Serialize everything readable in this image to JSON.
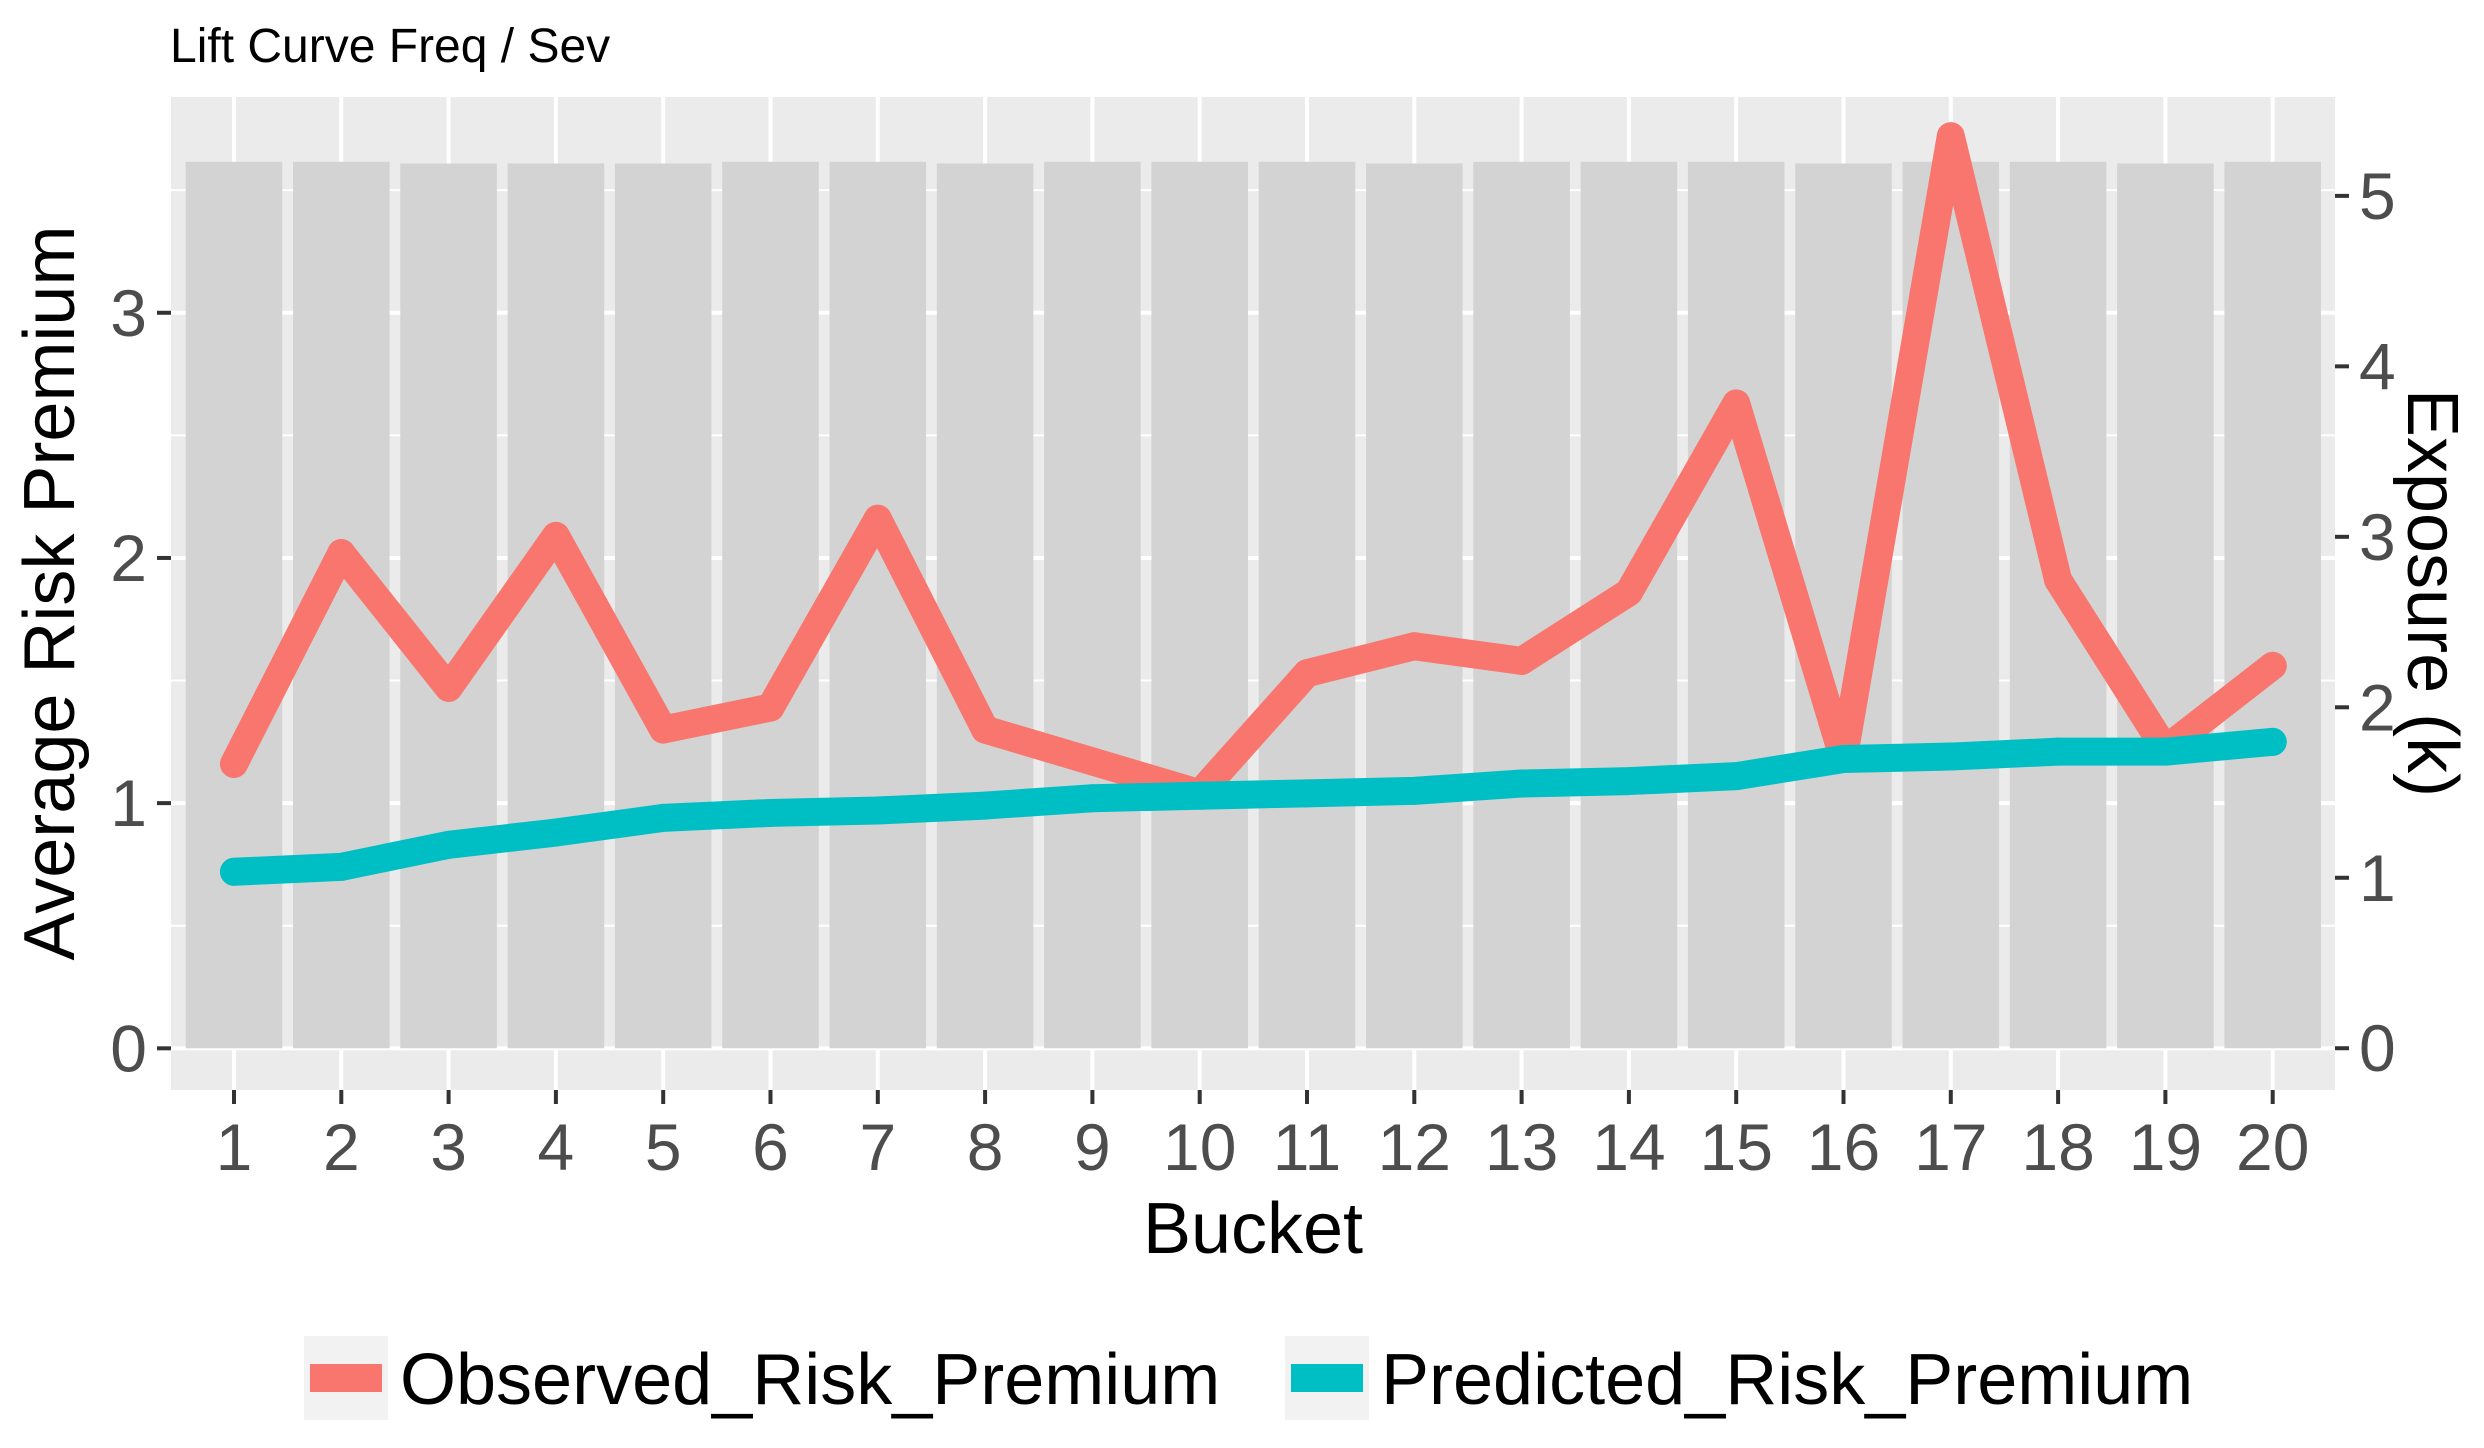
{
  "chart_data": {
    "type": "bar+line",
    "title": "Lift Curve Freq / Sev",
    "xlabel": "Bucket",
    "ylabel": "Average Risk Premium",
    "y2label": "Exposure (k)",
    "categories": [
      "1",
      "2",
      "3",
      "4",
      "5",
      "6",
      "7",
      "8",
      "9",
      "10",
      "11",
      "12",
      "13",
      "14",
      "15",
      "16",
      "17",
      "18",
      "19",
      "20"
    ],
    "ylim": [
      -0.17,
      3.88
    ],
    "yticks": [
      0,
      1,
      2,
      3
    ],
    "y2lim": [
      -0.245,
      5.58
    ],
    "y2ticks": [
      0,
      1,
      2,
      3,
      4,
      5
    ],
    "bars": {
      "name": "Exposure (k)",
      "values": [
        5.2,
        5.2,
        5.19,
        5.19,
        5.19,
        5.2,
        5.2,
        5.19,
        5.2,
        5.2,
        5.2,
        5.19,
        5.2,
        5.2,
        5.2,
        5.19,
        5.2,
        5.2,
        5.19,
        5.2
      ],
      "color": "#d3d3d3"
    },
    "series": [
      {
        "name": "Observed_Risk_Premium",
        "color": "#F8766D",
        "values": [
          1.16,
          2.02,
          1.47,
          2.09,
          1.3,
          1.39,
          2.16,
          1.3,
          1.17,
          1.04,
          1.53,
          1.64,
          1.58,
          1.86,
          2.63,
          1.18,
          3.72,
          1.91,
          1.22,
          1.56
        ]
      },
      {
        "name": "Predicted_Risk_Premium",
        "color": "#00BFC4",
        "values": [
          0.72,
          0.74,
          0.83,
          0.88,
          0.94,
          0.96,
          0.97,
          0.99,
          1.02,
          1.03,
          1.04,
          1.05,
          1.08,
          1.09,
          1.11,
          1.18,
          1.19,
          1.21,
          1.21,
          1.25
        ]
      }
    ],
    "grid": true,
    "panel_background": "#EBEBEB",
    "gridline_color": "#FFFFFF",
    "legend_position": "bottom"
  }
}
